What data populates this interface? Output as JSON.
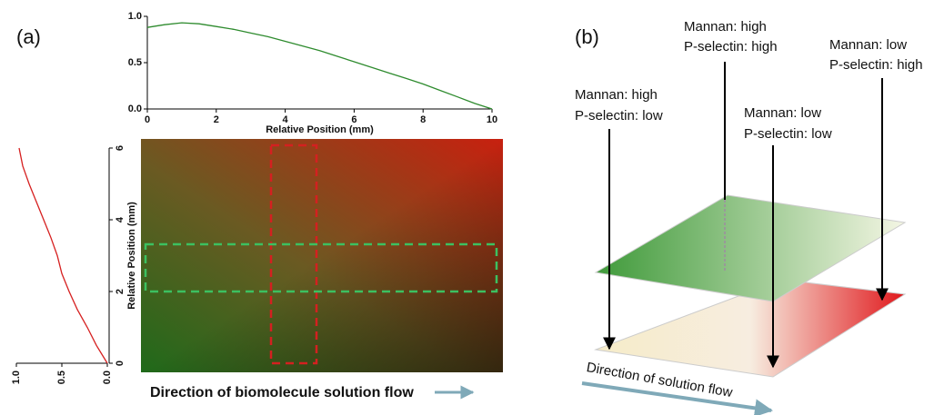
{
  "panel_labels": [
    "(a)",
    "(b)"
  ],
  "chart_data": [
    {
      "type": "line",
      "orientation": "horizontal",
      "xlabel": "Relative Position (mm)",
      "x": [
        0,
        0.5,
        1,
        1.5,
        2,
        2.5,
        3,
        3.5,
        4,
        4.5,
        5,
        5.5,
        6,
        6.5,
        7,
        7.5,
        8,
        8.5,
        9,
        9.5,
        10
      ],
      "series": [
        {
          "color": "#2e8b2e",
          "values": [
            0.88,
            0.91,
            0.93,
            0.92,
            0.89,
            0.86,
            0.82,
            0.78,
            0.73,
            0.68,
            0.63,
            0.57,
            0.51,
            0.45,
            0.39,
            0.33,
            0.27,
            0.2,
            0.13,
            0.06,
            0.0
          ]
        }
      ],
      "xlim": [
        0,
        10
      ],
      "xticks": [
        0,
        2,
        4,
        6,
        8,
        10
      ],
      "ylim": [
        0,
        1
      ],
      "yticks": [
        {
          "value": 0,
          "label": "0.0"
        },
        0.5,
        {
          "value": 1,
          "label": "1.0"
        }
      ]
    },
    {
      "type": "line",
      "orientation": "vertical",
      "xlabel": "Relative Position (mm)",
      "x": [
        0,
        0.5,
        1,
        1.5,
        2,
        2.5,
        3,
        3.5,
        4,
        4.5,
        5,
        5.5,
        6
      ],
      "series": [
        {
          "color": "#d62020",
          "values": [
            0.0,
            0.12,
            0.22,
            0.33,
            0.42,
            0.5,
            0.55,
            0.62,
            0.7,
            0.78,
            0.86,
            0.93,
            0.97
          ]
        }
      ],
      "xlim": [
        0,
        6
      ],
      "xticks": [
        0,
        2,
        4,
        6
      ],
      "ylim": [
        0,
        1
      ],
      "yticks": [
        {
          "value": 0,
          "label": "0.0"
        },
        0.5,
        {
          "value": 1,
          "label": "1.0"
        }
      ]
    }
  ],
  "image": {
    "caption": "Direction of biomolecule solution flow"
  },
  "diagram": {
    "labels": [
      [
        "Mannan: high",
        "P-selectin: low"
      ],
      [
        "Mannan: high",
        "P-selectin: high"
      ],
      [
        "Mannan: low",
        "P-selectin: high"
      ],
      [
        "Mannan: low",
        "P-selectin: low"
      ]
    ],
    "flow_label": "Direction of solution flow"
  }
}
